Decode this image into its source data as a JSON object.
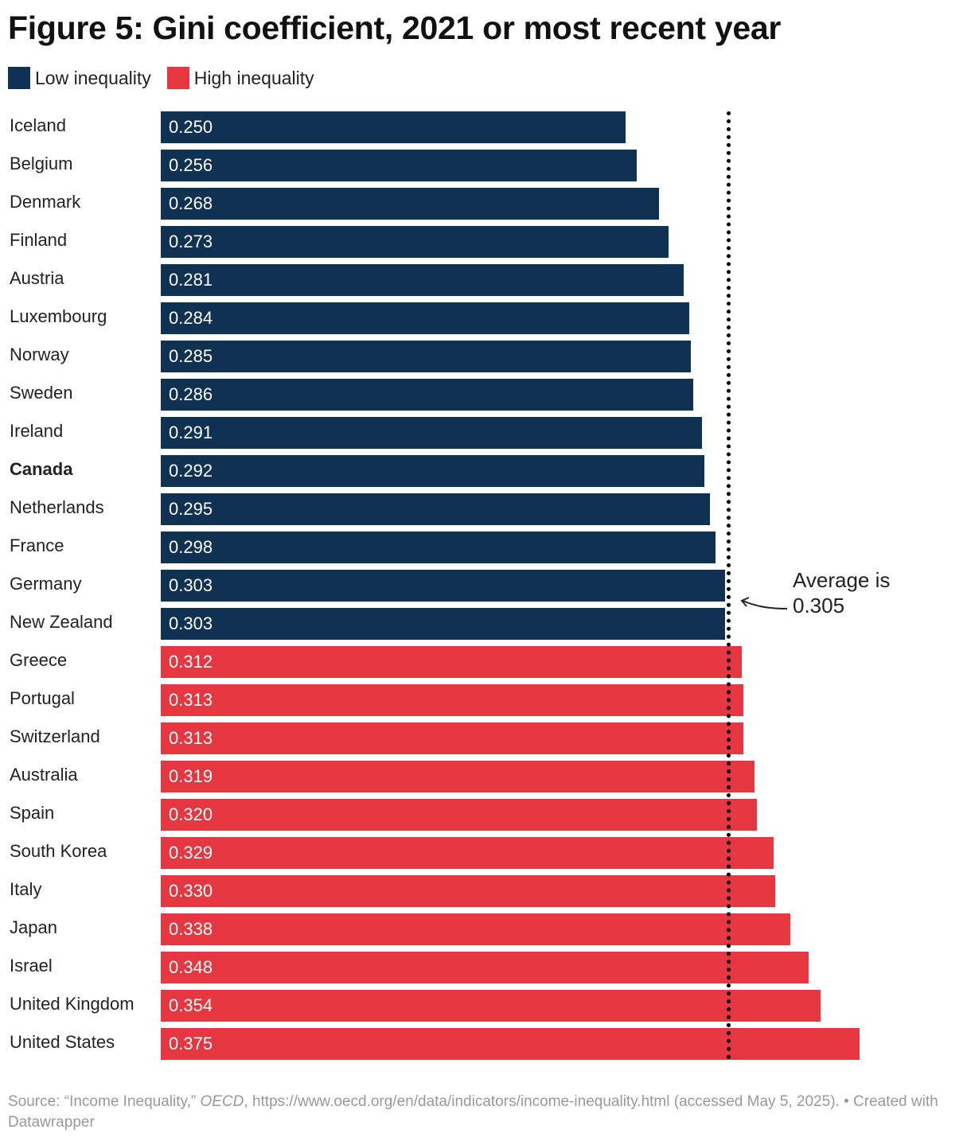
{
  "chart_data": {
    "type": "bar",
    "orientation": "horizontal",
    "title": "Figure 5: Gini coefficient, 2021 or most recent year",
    "legend": [
      {
        "label": "Low inequality",
        "color": "#0f3152"
      },
      {
        "label": "High inequality",
        "color": "#e63741"
      }
    ],
    "legend_placement": "top-left",
    "categories": [
      "Iceland",
      "Belgium",
      "Denmark",
      "Finland",
      "Austria",
      "Luxembourg",
      "Norway",
      "Sweden",
      "Ireland",
      "Canada",
      "Netherlands",
      "France",
      "Germany",
      "New Zealand",
      "Greece",
      "Portugal",
      "Switzerland",
      "Australia",
      "Spain",
      "South Korea",
      "Italy",
      "Japan",
      "Israel",
      "United Kingdom",
      "United States"
    ],
    "values": [
      0.25,
      0.256,
      0.268,
      0.273,
      0.281,
      0.284,
      0.285,
      0.286,
      0.291,
      0.292,
      0.295,
      0.298,
      0.303,
      0.303,
      0.312,
      0.313,
      0.313,
      0.319,
      0.32,
      0.329,
      0.33,
      0.338,
      0.348,
      0.354,
      0.375
    ],
    "labels": [
      "0.250",
      "0.256",
      "0.268",
      "0.273",
      "0.281",
      "0.284",
      "0.285",
      "0.286",
      "0.291",
      "0.292",
      "0.295",
      "0.298",
      "0.303",
      "0.303",
      "0.312",
      "0.313",
      "0.313",
      "0.319",
      "0.320",
      "0.329",
      "0.330",
      "0.338",
      "0.348",
      "0.354",
      "0.375"
    ],
    "highlighted_category": "Canada",
    "xlim": [
      0,
      0.375
    ],
    "grid": false,
    "average": 0.305,
    "annotation": [
      "Average is",
      "0.305"
    ]
  },
  "footer": {
    "source_prefix": "Source: “Income Inequality,” ",
    "source_org": "OECD",
    "source_rest": ", https://www.oecd.org/en/data/indicators/income-inequality.html (accessed May 5, 2025). • Created with Datawrapper"
  }
}
